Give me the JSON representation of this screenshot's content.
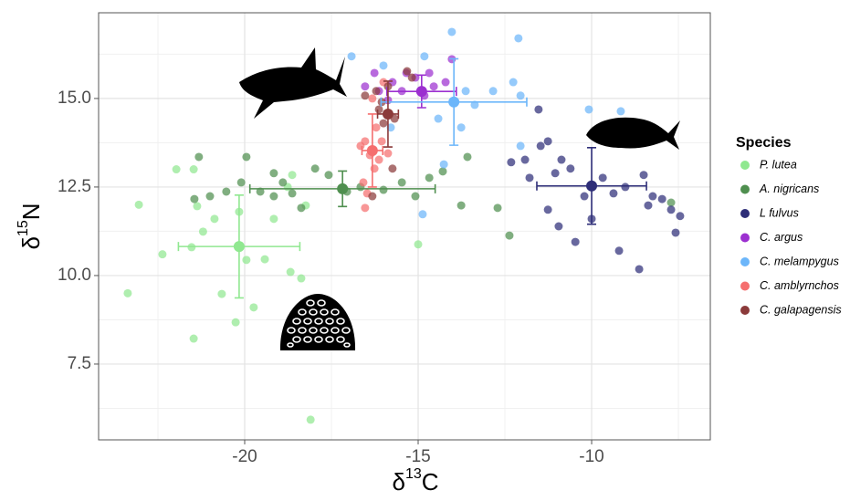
{
  "chart_data": {
    "type": "scatter",
    "x_label": {
      "symbol": "δ",
      "sup": "13",
      "element": "C"
    },
    "y_label": {
      "symbol": "δ",
      "sup": "15",
      "element": "N"
    },
    "legend_title": "Species",
    "legend": "right",
    "grid": true,
    "xlim": [
      -24.21,
      -6.58
    ],
    "ylim": [
      5.36,
      17.42
    ],
    "xticks": [
      -20,
      -15,
      -10
    ],
    "yticks": [
      {
        "value": 7.5,
        "label": "7.5"
      },
      {
        "value": 10,
        "label": "10.0"
      },
      {
        "value": 12.5,
        "label": "12.5"
      },
      {
        "value": 15,
        "label": "15.0"
      }
    ],
    "minor_xticks": [
      -22.5,
      -17.5,
      -12.5,
      -7.5
    ],
    "minor_yticks": [
      6.25,
      8.75,
      11.25,
      13.75,
      16.25
    ],
    "series": [
      {
        "name": "P. lutea",
        "color": "#90e890",
        "x": [
          -23.05,
          -23.37,
          -22.37,
          -21.97,
          -21.47,
          -21.37,
          -21.2,
          -21.53,
          -20.66,
          -21.47,
          -20.26,
          -20.16,
          -19.95,
          -19.74,
          -19.42,
          -19.16,
          -18.76,
          -18.68,
          -18.37,
          -18.63,
          -18.1,
          -20.87,
          -15.0,
          -18.24
        ],
        "y": [
          12.0,
          9.5,
          10.6,
          13.0,
          13.0,
          11.96,
          11.24,
          10.8,
          9.48,
          8.22,
          8.68,
          11.8,
          10.44,
          9.1,
          10.46,
          11.6,
          12.5,
          10.1,
          9.92,
          12.84,
          5.93,
          11.6,
          10.88,
          11.98
        ],
        "mean": {
          "x": -20.16,
          "y": 10.82,
          "xerr": 1.75,
          "yerr": 1.45
        }
      },
      {
        "name": "A. nigricans",
        "color": "#4f8f4f",
        "x": [
          -21.32,
          -21.0,
          -21.45,
          -20.53,
          -20.1,
          -19.95,
          -19.55,
          -19.16,
          -18.9,
          -18.63,
          -17.97,
          -17.58,
          -17.05,
          -16.66,
          -16.0,
          -15.47,
          -15.08,
          -14.68,
          -14.29,
          -13.76,
          -13.58,
          -12.71,
          -12.37,
          -7.71,
          -19.16,
          -18.37
        ],
        "y": [
          13.35,
          12.24,
          12.16,
          12.37,
          12.63,
          13.35,
          12.37,
          12.89,
          12.63,
          12.32,
          13.02,
          12.84,
          12.37,
          12.5,
          12.42,
          12.63,
          12.24,
          12.76,
          12.94,
          11.98,
          13.35,
          11.91,
          11.13,
          12.06,
          12.24,
          11.91
        ],
        "mean": {
          "x": -17.18,
          "y": 12.45,
          "xerr": 2.67,
          "yerr": 0.5
        }
      },
      {
        "name": "L fulvus",
        "color": "#2e2e78",
        "x": [
          -12.32,
          -11.92,
          -11.53,
          -11.26,
          -11.47,
          -11.79,
          -10.87,
          -10.61,
          -10.21,
          -10.47,
          -10.0,
          -9.68,
          -9.37,
          -9.03,
          -9.21,
          -8.63,
          -8.5,
          -8.37,
          -8.24,
          -7.97,
          -7.71,
          -7.45,
          -7.58,
          -11.26,
          -10.95,
          -11.05
        ],
        "y": [
          13.2,
          13.27,
          14.69,
          13.79,
          13.66,
          12.76,
          13.27,
          13.02,
          12.24,
          10.95,
          11.6,
          12.76,
          12.32,
          12.5,
          10.7,
          10.18,
          12.84,
          11.98,
          12.24,
          12.16,
          11.86,
          11.68,
          11.21,
          11.86,
          11.39,
          12.89
        ],
        "mean": {
          "x": -10.0,
          "y": 12.53,
          "xerr": 1.58,
          "yerr": 1.08
        }
      },
      {
        "name": "C. argus",
        "color": "#9c30d0",
        "x": [
          -16.53,
          -16.26,
          -15.74,
          -15.34,
          -15.08,
          -14.82,
          -14.55,
          -14.21,
          -14.03,
          -15.87,
          -15.47,
          -16.13,
          -14.68
        ],
        "y": [
          15.34,
          15.72,
          15.46,
          15.72,
          15.59,
          15.08,
          15.34,
          15.46,
          16.11,
          14.95,
          15.21,
          15.21,
          15.72
        ],
        "mean": {
          "x": -14.9,
          "y": 15.2,
          "xerr": 1.0,
          "yerr": 0.46
        }
      },
      {
        "name": "C. melampygus",
        "color": "#6cb6fa",
        "x": [
          -16.92,
          -16.0,
          -14.82,
          -14.03,
          -12.11,
          -12.84,
          -12.26,
          -12.05,
          -13.37,
          -14.42,
          -13.76,
          -14.26,
          -14.87,
          -12.05,
          -10.08,
          -9.16,
          -15.79,
          -13.63
        ],
        "y": [
          16.19,
          15.93,
          16.19,
          16.88,
          16.7,
          15.21,
          15.46,
          15.08,
          14.82,
          14.43,
          14.18,
          13.14,
          11.73,
          13.66,
          14.69,
          14.64,
          14.18,
          15.21
        ],
        "mean": {
          "x": -13.97,
          "y": 14.9,
          "xerr": 2.1,
          "yerr": 1.22
        }
      },
      {
        "name": "C. amblyrnchos",
        "color": "#f56f6f",
        "x": [
          -16.53,
          -16.39,
          -16.26,
          -16.58,
          -16.47,
          -16.53,
          -16.21,
          -16.05,
          -16.13,
          -16.32,
          -16.0,
          -16.66,
          -15.87
        ],
        "y": [
          13.79,
          13.4,
          13.02,
          12.63,
          12.32,
          11.91,
          14.18,
          13.79,
          13.27,
          15.0,
          15.46,
          13.66,
          13.45
        ],
        "mean": {
          "x": -16.32,
          "y": 13.53,
          "xerr": 0.3,
          "yerr": 1.03
        }
      },
      {
        "name": "C. galapagensis",
        "color": "#8b3a3a",
        "x": [
          -16.53,
          -16.13,
          -15.87,
          -15.68,
          -16.0,
          -15.32,
          -15.18,
          -16.21,
          -15.87,
          -16.32,
          -15.74,
          -16.05
        ],
        "y": [
          15.08,
          14.69,
          14.56,
          14.43,
          14.3,
          15.77,
          15.59,
          15.21,
          15.34,
          12.24,
          13.02,
          14.9
        ],
        "mean": {
          "x": -15.87,
          "y": 14.56,
          "xerr": 0.3,
          "yerr": 0.93
        }
      }
    ]
  }
}
